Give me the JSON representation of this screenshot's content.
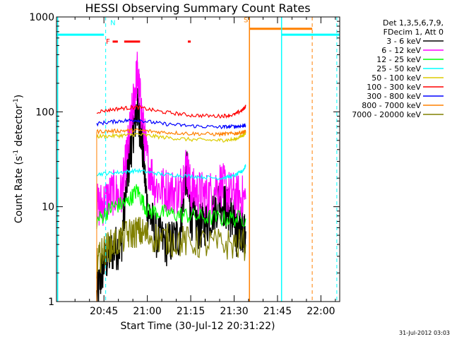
{
  "chart_data": {
    "type": "line",
    "title": "HESSI Observing Summary Count Rates",
    "xlabel": "Start Time (30-Jul-12 20:31:22)",
    "ylabel_main": "Count Rate (s",
    "ylabel_sup1": "-1",
    "ylabel_mid": " detector",
    "ylabel_sup2": "-1",
    "ylabel_end": ")",
    "y_scale": "log",
    "ylim": [
      1,
      1000
    ],
    "xlim_minutes": [
      -16.4,
      81.5
    ],
    "x_ticks": [
      {
        "label": "20:45",
        "m": 0
      },
      {
        "label": "21:00",
        "m": 15
      },
      {
        "label": "21:15",
        "m": 30
      },
      {
        "label": "21:30",
        "m": 45
      },
      {
        "label": "21:45",
        "m": 60
      },
      {
        "label": "22:00",
        "m": 75
      }
    ],
    "y_ticks": [
      {
        "label": "1",
        "v": 1
      },
      {
        "label": "10",
        "v": 10
      },
      {
        "label": "100",
        "v": 100
      },
      {
        "label": "1000",
        "v": 1000
      }
    ],
    "legend_header": [
      "Det 1,3,5,6,7,9,",
      "FDecim 1, Att 0"
    ],
    "legend_placement": "right",
    "series": [
      {
        "name": "3 - 6 keV",
        "color": "#000000",
        "x": [
          -2.5,
          0,
          3,
          6,
          8,
          10,
          11.5,
          13,
          15,
          18,
          22,
          26,
          28.5,
          30,
          33,
          36,
          40,
          43,
          45,
          46,
          47.5,
          49
        ],
        "y": [
          1.1,
          2.5,
          3.5,
          4,
          20,
          60,
          110,
          55,
          10,
          5,
          4,
          5,
          25,
          8,
          6,
          7,
          12,
          9,
          7,
          5,
          6,
          5.5
        ]
      },
      {
        "name": "6 - 12 keV",
        "color": "#ff00ff",
        "x": [
          -2.5,
          0,
          3,
          6,
          8,
          10,
          11.5,
          13,
          15,
          18,
          22,
          26,
          28.5,
          30,
          33,
          36,
          40,
          43,
          46,
          49
        ],
        "y": [
          10,
          11,
          14,
          13,
          35,
          110,
          260,
          100,
          30,
          16,
          15,
          14,
          28,
          15,
          14,
          13,
          18,
          14,
          13,
          12
        ]
      },
      {
        "name": "12 - 25 keV",
        "color": "#00ff00",
        "x": [
          -2.5,
          3,
          8,
          11.5,
          15,
          22,
          30,
          40,
          49
        ],
        "y": [
          7,
          10,
          11,
          15,
          9,
          8.5,
          8,
          7.5,
          7.5
        ]
      },
      {
        "name": "25 - 50 keV",
        "color": "#00ffff",
        "x": [
          -2.5,
          5,
          11.5,
          20,
          30,
          40,
          45,
          48,
          49
        ],
        "y": [
          22,
          23,
          24,
          22,
          21,
          20,
          21,
          24,
          27
        ]
      },
      {
        "name": "50 - 100 keV",
        "color": "#ddcc00",
        "x": [
          -2.5,
          5,
          11.5,
          20,
          30,
          40,
          45,
          48,
          49
        ],
        "y": [
          55,
          56,
          58,
          54,
          51,
          50,
          51,
          56,
          60
        ]
      },
      {
        "name": "100 - 300 keV",
        "color": "#ff0000",
        "x": [
          -2.5,
          5,
          11.5,
          20,
          30,
          40,
          45,
          48,
          49
        ],
        "y": [
          100,
          108,
          112,
          100,
          92,
          90,
          93,
          105,
          115
        ]
      },
      {
        "name": "300 - 800 keV",
        "color": "#0000ff",
        "x": [
          -2.5,
          5,
          11.5,
          20,
          30,
          40,
          45,
          48,
          49
        ],
        "y": [
          75,
          80,
          82,
          75,
          71,
          69,
          70,
          71,
          72
        ]
      },
      {
        "name": "800 - 7000 keV",
        "color": "#ff8000",
        "x": [
          -2.5,
          5,
          11.5,
          20,
          30,
          40,
          45,
          48,
          49
        ],
        "y": [
          62,
          63,
          64,
          61,
          59,
          58,
          59,
          61,
          62
        ]
      },
      {
        "name": "7000 - 20000 keV",
        "color": "#808000",
        "x": [
          -2.5,
          0,
          3,
          8,
          11.5,
          15,
          22,
          30,
          40,
          49
        ],
        "y": [
          2.5,
          3.5,
          4,
          5,
          5.5,
          5,
          4.5,
          4.2,
          4.0,
          4.0
        ]
      }
    ],
    "flag_labels": {
      "f": "F",
      "n": "N",
      "s": "S"
    },
    "attenuator_level": 650,
    "saa_level": 750,
    "flare_segments": [
      [
        3,
        4.8
      ],
      [
        7,
        12.5
      ],
      [
        29,
        30
      ]
    ],
    "flare_level": 550
  },
  "footer": {
    "date_stamp": "31-Jul-2012 03:03"
  }
}
